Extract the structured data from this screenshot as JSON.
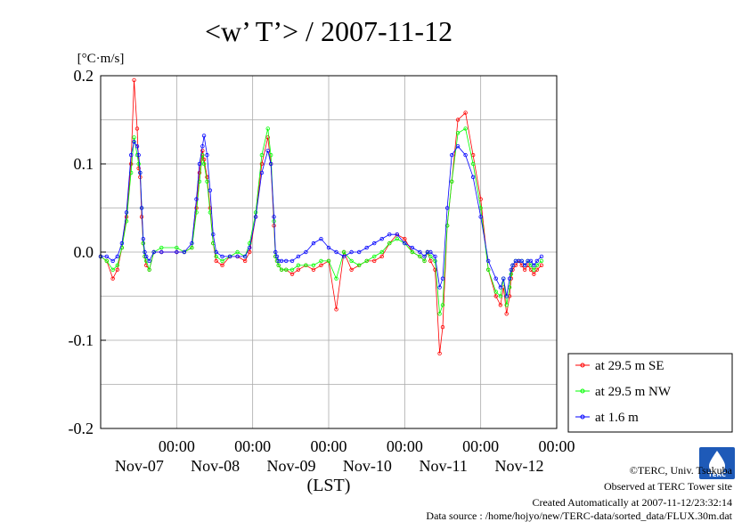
{
  "title": "<w’ T’> / 2007-11-12",
  "unit_label": "[°C·m/s]",
  "xlabel": "(LST)",
  "credits": {
    "copyright": "©TERC, Univ. Tsukuba",
    "site": "Observed at TERC Tower site",
    "created": "Created Automatically at 2007-11-12/23:32:14",
    "source": "Data source : /home/hojyo/new/TERC-data/sorted_data/FLUX.30m.dat"
  },
  "logo": {
    "text": "TERC"
  },
  "chart_data": {
    "type": "line",
    "title": "<w’ T’> / 2007-11-12",
    "ylabel": "[°C·m/s]",
    "xlabel": "(LST)",
    "xlim": [
      0,
      6
    ],
    "ylim": [
      -0.2,
      0.2
    ],
    "x_unit": "days since 2007-11-06 12:00 LST",
    "x_ticks": [
      {
        "x": 1,
        "time": "00:00",
        "date": "Nov-07"
      },
      {
        "x": 2,
        "time": "00:00",
        "date": "Nov-08"
      },
      {
        "x": 3,
        "time": "00:00",
        "date": "Nov-09"
      },
      {
        "x": 4,
        "time": "00:00",
        "date": "Nov-10"
      },
      {
        "x": 5,
        "time": "00:00",
        "date": "Nov-11"
      },
      {
        "x": 6,
        "time": "00:00",
        "date": "Nov-12"
      }
    ],
    "y_ticks": [
      {
        "value": 0.2,
        "label": "0.2"
      },
      {
        "value": 0.1,
        "label": "0.1"
      },
      {
        "value": 0.0,
        "label": "0.0"
      },
      {
        "value": -0.1,
        "label": "-0.1"
      },
      {
        "value": -0.2,
        "label": "-0.2"
      }
    ],
    "grid": true,
    "legend_position": "right-bottom outside",
    "series": [
      {
        "name": "at 29.5 m SE",
        "color": "#ff0000",
        "x": [
          0.0,
          0.08,
          0.16,
          0.22,
          0.28,
          0.34,
          0.4,
          0.44,
          0.48,
          0.5,
          0.52,
          0.54,
          0.56,
          0.58,
          0.6,
          0.64,
          0.7,
          0.8,
          1.0,
          1.1,
          1.2,
          1.26,
          1.3,
          1.34,
          1.36,
          1.4,
          1.44,
          1.48,
          1.52,
          1.6,
          1.7,
          1.8,
          1.9,
          1.96,
          2.04,
          2.12,
          2.2,
          2.24,
          2.28,
          2.3,
          2.32,
          2.34,
          2.38,
          2.44,
          2.52,
          2.6,
          2.7,
          2.8,
          2.9,
          3.0,
          3.1,
          3.2,
          3.3,
          3.4,
          3.5,
          3.6,
          3.7,
          3.8,
          3.9,
          4.0,
          4.1,
          4.2,
          4.26,
          4.3,
          4.34,
          4.4,
          4.46,
          4.5,
          4.56,
          4.62,
          4.7,
          4.8,
          4.9,
          5.0,
          5.1,
          5.2,
          5.26,
          5.3,
          5.34,
          5.38,
          5.4,
          5.42,
          5.46,
          5.5,
          5.54,
          5.58,
          5.62,
          5.66,
          5.7,
          5.74,
          5.8
        ],
        "y": [
          -0.005,
          -0.01,
          -0.03,
          -0.02,
          0.005,
          0.04,
          0.1,
          0.195,
          0.14,
          0.095,
          0.085,
          0.04,
          0.01,
          -0.005,
          -0.015,
          -0.02,
          0.0,
          0.0,
          0.0,
          0.0,
          0.005,
          0.05,
          0.09,
          0.115,
          0.105,
          0.085,
          0.05,
          0.01,
          -0.01,
          -0.015,
          -0.005,
          -0.005,
          -0.01,
          0.0,
          0.04,
          0.1,
          0.13,
          0.1,
          0.03,
          -0.005,
          -0.01,
          -0.015,
          -0.02,
          -0.02,
          -0.025,
          -0.02,
          -0.015,
          -0.02,
          -0.015,
          -0.01,
          -0.065,
          0.0,
          -0.02,
          -0.015,
          -0.01,
          -0.01,
          -0.005,
          0.01,
          0.02,
          0.015,
          0.0,
          -0.005,
          -0.01,
          0.0,
          -0.01,
          -0.02,
          -0.115,
          -0.085,
          0.03,
          0.08,
          0.15,
          0.158,
          0.11,
          0.06,
          -0.02,
          -0.05,
          -0.06,
          -0.04,
          -0.07,
          -0.05,
          -0.03,
          -0.02,
          -0.015,
          -0.01,
          -0.015,
          -0.02,
          -0.015,
          -0.02,
          -0.025,
          -0.02,
          -0.015
        ]
      },
      {
        "name": "at 29.5 m NW",
        "color": "#00ff00",
        "x": [
          0.0,
          0.08,
          0.16,
          0.22,
          0.28,
          0.34,
          0.4,
          0.44,
          0.48,
          0.5,
          0.52,
          0.54,
          0.56,
          0.58,
          0.6,
          0.64,
          0.7,
          0.8,
          1.0,
          1.1,
          1.2,
          1.26,
          1.3,
          1.34,
          1.36,
          1.4,
          1.44,
          1.48,
          1.52,
          1.6,
          1.7,
          1.8,
          1.9,
          1.96,
          2.04,
          2.12,
          2.2,
          2.24,
          2.28,
          2.3,
          2.32,
          2.34,
          2.38,
          2.44,
          2.52,
          2.6,
          2.7,
          2.8,
          2.9,
          3.0,
          3.1,
          3.2,
          3.3,
          3.4,
          3.5,
          3.6,
          3.7,
          3.8,
          3.9,
          4.0,
          4.1,
          4.2,
          4.26,
          4.3,
          4.34,
          4.4,
          4.46,
          4.5,
          4.56,
          4.62,
          4.7,
          4.8,
          4.9,
          5.0,
          5.1,
          5.2,
          5.26,
          5.3,
          5.34,
          5.38,
          5.4,
          5.42,
          5.46,
          5.5,
          5.54,
          5.58,
          5.62,
          5.66,
          5.7,
          5.74,
          5.8
        ],
        "y": [
          -0.005,
          -0.01,
          -0.02,
          -0.015,
          0.005,
          0.035,
          0.09,
          0.13,
          0.11,
          0.1,
          0.09,
          0.05,
          0.01,
          -0.005,
          -0.01,
          -0.02,
          0.0,
          0.005,
          0.005,
          0.0,
          0.005,
          0.045,
          0.08,
          0.11,
          0.1,
          0.08,
          0.045,
          0.01,
          -0.005,
          -0.01,
          -0.005,
          0.0,
          -0.005,
          0.01,
          0.045,
          0.11,
          0.14,
          0.11,
          0.035,
          -0.005,
          -0.01,
          -0.015,
          -0.02,
          -0.02,
          -0.02,
          -0.015,
          -0.015,
          -0.015,
          -0.01,
          -0.01,
          -0.03,
          0.0,
          -0.01,
          -0.015,
          -0.01,
          -0.005,
          0.0,
          0.01,
          0.015,
          0.01,
          0.0,
          -0.005,
          -0.01,
          0.0,
          -0.005,
          -0.01,
          -0.07,
          -0.06,
          0.03,
          0.08,
          0.135,
          0.14,
          0.1,
          0.05,
          -0.02,
          -0.045,
          -0.05,
          -0.03,
          -0.06,
          -0.04,
          -0.025,
          -0.015,
          -0.01,
          -0.01,
          -0.01,
          -0.015,
          -0.01,
          -0.015,
          -0.02,
          -0.015,
          -0.01
        ]
      },
      {
        "name": "at 1.6 m",
        "color": "#0000ff",
        "x": [
          0.0,
          0.08,
          0.16,
          0.22,
          0.28,
          0.34,
          0.4,
          0.44,
          0.48,
          0.5,
          0.52,
          0.54,
          0.56,
          0.58,
          0.6,
          0.64,
          0.7,
          0.8,
          1.0,
          1.1,
          1.2,
          1.26,
          1.3,
          1.34,
          1.36,
          1.4,
          1.44,
          1.48,
          1.52,
          1.6,
          1.7,
          1.8,
          1.9,
          1.96,
          2.04,
          2.12,
          2.2,
          2.24,
          2.28,
          2.3,
          2.32,
          2.34,
          2.38,
          2.44,
          2.52,
          2.6,
          2.7,
          2.8,
          2.9,
          3.0,
          3.1,
          3.2,
          3.3,
          3.4,
          3.5,
          3.6,
          3.7,
          3.8,
          3.9,
          4.0,
          4.1,
          4.2,
          4.26,
          4.3,
          4.34,
          4.4,
          4.46,
          4.5,
          4.56,
          4.62,
          4.7,
          4.8,
          4.9,
          5.0,
          5.1,
          5.2,
          5.26,
          5.3,
          5.34,
          5.38,
          5.4,
          5.42,
          5.46,
          5.5,
          5.54,
          5.58,
          5.62,
          5.66,
          5.7,
          5.74,
          5.8
        ],
        "y": [
          -0.005,
          -0.005,
          -0.01,
          -0.005,
          0.01,
          0.045,
          0.11,
          0.125,
          0.12,
          0.11,
          0.09,
          0.05,
          0.015,
          0.0,
          -0.005,
          -0.01,
          0.0,
          0.0,
          0.0,
          0.0,
          0.01,
          0.06,
          0.1,
          0.12,
          0.132,
          0.11,
          0.07,
          0.02,
          0.0,
          -0.005,
          -0.005,
          -0.005,
          -0.005,
          0.005,
          0.04,
          0.09,
          0.115,
          0.1,
          0.04,
          0.0,
          -0.005,
          -0.01,
          -0.01,
          -0.01,
          -0.01,
          -0.005,
          0.0,
          0.01,
          0.015,
          0.005,
          0.0,
          -0.005,
          0.0,
          0.0,
          0.005,
          0.01,
          0.015,
          0.02,
          0.02,
          0.01,
          0.005,
          0.0,
          -0.005,
          0.0,
          0.0,
          -0.005,
          -0.04,
          -0.03,
          0.05,
          0.11,
          0.12,
          0.11,
          0.085,
          0.04,
          -0.01,
          -0.03,
          -0.04,
          -0.03,
          -0.05,
          -0.03,
          -0.02,
          -0.015,
          -0.01,
          -0.01,
          -0.01,
          -0.015,
          -0.01,
          -0.01,
          -0.015,
          -0.01,
          -0.005
        ]
      }
    ]
  }
}
